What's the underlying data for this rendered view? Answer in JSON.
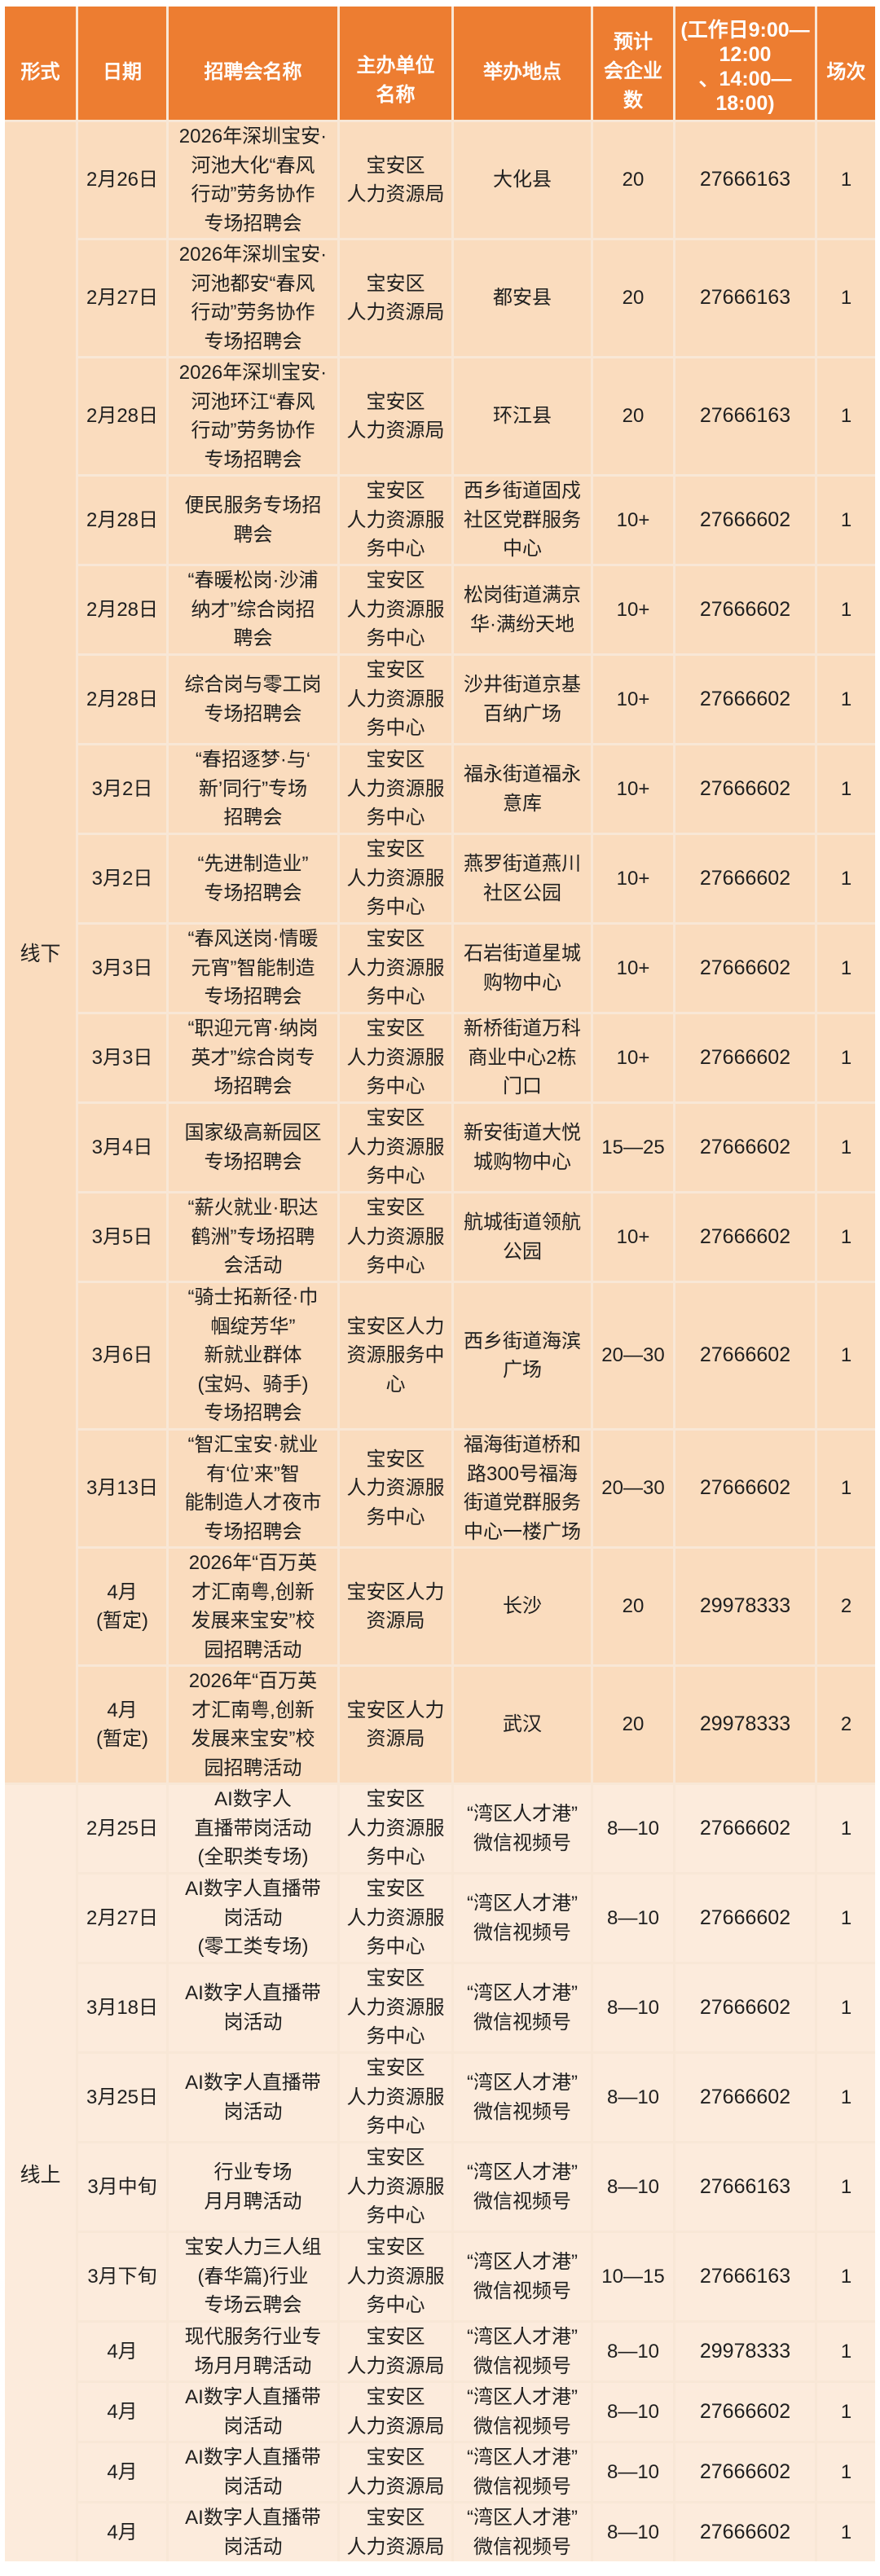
{
  "colors": {
    "header_bg": "#ED7D31",
    "header_text": "#FFFFFF",
    "offline_row_bg": "#FADCBE",
    "online_row_bg": "#FCEBDC",
    "grid_line": "#F8E7D6",
    "body_text": "#1F1F1F"
  },
  "table": {
    "header": {
      "cols": [
        "形式",
        "日期",
        "招聘会名称",
        "主办单位\n名称",
        "举办地点",
        "预计\n会企业\n数",
        "(工作日9:00—12:00\n、14:00—18:00)",
        "场次"
      ]
    },
    "sections": [
      {
        "label": "线下",
        "rows": [
          {
            "date": "2月26日",
            "name": "2026年深圳宝安·\n河池大化“春风\n行动”劳务协作\n专场招聘会",
            "org": "宝安区\n人力资源局",
            "loc": "大化县",
            "companies": "20",
            "phone": "27666163",
            "sessions": "1"
          },
          {
            "date": "2月27日",
            "name": "2026年深圳宝安·\n河池都安“春风\n行动”劳务协作\n专场招聘会",
            "org": "宝安区\n人力资源局",
            "loc": "都安县",
            "companies": "20",
            "phone": "27666163",
            "sessions": "1"
          },
          {
            "date": "2月28日",
            "name": "2026年深圳宝安·\n河池环江“春风\n行动”劳务协作\n专场招聘会",
            "org": "宝安区\n人力资源局",
            "loc": "环江县",
            "companies": "20",
            "phone": "27666163",
            "sessions": "1"
          },
          {
            "date": "2月28日",
            "name": "便民服务专场招\n聘会",
            "org": "宝安区\n人力资源服\n务中心",
            "loc": "西乡街道固戍\n社区党群服务\n中心",
            "companies": "10+",
            "phone": "27666602",
            "sessions": "1"
          },
          {
            "date": "2月28日",
            "name": "“春暖松岗·沙浦\n纳才”综合岗招\n聘会",
            "org": "宝安区\n人力资源服\n务中心",
            "loc": "松岗街道满京\n华·满纷天地",
            "companies": "10+",
            "phone": "27666602",
            "sessions": "1"
          },
          {
            "date": "2月28日",
            "name": "综合岗与零工岗\n专场招聘会",
            "org": "宝安区\n人力资源服\n务中心",
            "loc": "沙井街道京基\n百纳广场",
            "companies": "10+",
            "phone": "27666602",
            "sessions": "1"
          },
          {
            "date": "3月2日",
            "name": "“春招逐梦·与‘\n新’同行”专场\n招聘会",
            "org": "宝安区\n人力资源服\n务中心",
            "loc": "福永街道福永\n意库",
            "companies": "10+",
            "phone": "27666602",
            "sessions": "1"
          },
          {
            "date": "3月2日",
            "name": "“先进制造业”\n专场招聘会",
            "org": "宝安区\n人力资源服\n务中心",
            "loc": "燕罗街道燕川\n社区公园",
            "companies": "10+",
            "phone": "27666602",
            "sessions": "1"
          },
          {
            "date": "3月3日",
            "name": "“春风送岗·情暖\n元宵”智能制造\n专场招聘会",
            "org": "宝安区\n人力资源服\n务中心",
            "loc": "石岩街道星城\n购物中心",
            "companies": "10+",
            "phone": "27666602",
            "sessions": "1"
          },
          {
            "date": "3月3日",
            "name": "“职迎元宵·纳岗\n英才”综合岗专\n场招聘会",
            "org": "宝安区\n人力资源服\n务中心",
            "loc": "新桥街道万科\n商业中心2栋\n门口",
            "companies": "10+",
            "phone": "27666602",
            "sessions": "1"
          },
          {
            "date": "3月4日",
            "name": "国家级高新园区\n专场招聘会",
            "org": "宝安区\n人力资源服\n务中心",
            "loc": "新安街道大悦\n城购物中心",
            "companies": "15—25",
            "phone": "27666602",
            "sessions": "1"
          },
          {
            "date": "3月5日",
            "name": "“薪火就业·职达\n鹤洲”专场招聘\n会活动",
            "org": "宝安区\n人力资源服\n务中心",
            "loc": "航城街道领航\n公园",
            "companies": "10+",
            "phone": "27666602",
            "sessions": "1"
          },
          {
            "date": "3月6日",
            "name": "“骑士拓新径·巾\n帼绽芳华”\n新就业群体\n(宝妈、骑手)\n专场招聘会",
            "org": "宝安区人力\n资源服务中\n心",
            "loc": "西乡街道海滨\n广场",
            "companies": "20—30",
            "phone": "27666602",
            "sessions": "1"
          },
          {
            "date": "3月13日",
            "name": "“智汇宝安·就业\n有‘位’来”智\n能制造人才夜市\n专场招聘会",
            "org": "宝安区\n人力资源服\n务中心",
            "loc": "福海街道桥和\n路300号福海\n街道党群服务\n中心一楼广场",
            "companies": "20—30",
            "phone": "27666602",
            "sessions": "1"
          },
          {
            "date": "4月\n(暂定)",
            "name": "2026年“百万英\n才汇南粤,创新\n发展来宝安”校\n园招聘活动",
            "org": "宝安区人力\n资源局",
            "loc": "长沙",
            "companies": "20",
            "phone": "29978333",
            "sessions": "2"
          },
          {
            "date": "4月\n(暂定)",
            "name": "2026年“百万英\n才汇南粤,创新\n发展来宝安”校\n园招聘活动",
            "org": "宝安区人力\n资源局",
            "loc": "武汉",
            "companies": "20",
            "phone": "29978333",
            "sessions": "2"
          }
        ]
      },
      {
        "label": "线上",
        "rows": [
          {
            "date": "2月25日",
            "name": "AI数字人\n直播带岗活动\n(全职类专场)",
            "org": "宝安区\n人力资源服\n务中心",
            "loc": "“湾区人才港”\n微信视频号",
            "companies": "8—10",
            "phone": "27666602",
            "sessions": "1"
          },
          {
            "date": "2月27日",
            "name": "AI数字人直播带\n岗活动\n(零工类专场)",
            "org": "宝安区\n人力资源服\n务中心",
            "loc": "“湾区人才港”\n微信视频号",
            "companies": "8—10",
            "phone": "27666602",
            "sessions": "1"
          },
          {
            "date": "3月18日",
            "name": "AI数字人直播带\n岗活动",
            "org": "宝安区\n人力资源服\n务中心",
            "loc": "“湾区人才港”\n微信视频号",
            "companies": "8—10",
            "phone": "27666602",
            "sessions": "1"
          },
          {
            "date": "3月25日",
            "name": "AI数字人直播带\n岗活动",
            "org": "宝安区\n人力资源服\n务中心",
            "loc": "“湾区人才港”\n微信视频号",
            "companies": "8—10",
            "phone": "27666602",
            "sessions": "1"
          },
          {
            "date": "3月中旬",
            "name": "行业专场\n月月聘活动",
            "org": "宝安区\n人力资源服\n务中心",
            "loc": "“湾区人才港”\n微信视频号",
            "companies": "8—10",
            "phone": "27666163",
            "sessions": "1"
          },
          {
            "date": "3月下旬",
            "name": "宝安人力三人组\n(春华篇)行业\n专场云聘会",
            "org": "宝安区\n人力资源服\n务中心",
            "loc": "“湾区人才港”\n微信视频号",
            "companies": "10—15",
            "phone": "27666163",
            "sessions": "1"
          },
          {
            "date": "4月",
            "name": "现代服务行业专\n场月月聘活动",
            "org": "宝安区\n人力资源局",
            "loc": "“湾区人才港”\n微信视频号",
            "companies": "8—10",
            "phone": "29978333",
            "sessions": "1"
          },
          {
            "date": "4月",
            "name": "AI数字人直播带\n岗活动",
            "org": "宝安区\n人力资源局",
            "loc": "“湾区人才港”\n微信视频号",
            "companies": "8—10",
            "phone": "27666602",
            "sessions": "1"
          },
          {
            "date": "4月",
            "name": "AI数字人直播带\n岗活动",
            "org": "宝安区\n人力资源局",
            "loc": "“湾区人才港”\n微信视频号",
            "companies": "8—10",
            "phone": "27666602",
            "sessions": "1"
          },
          {
            "date": "4月",
            "name": "AI数字人直播带\n岗活动",
            "org": "宝安区\n人力资源局",
            "loc": "“湾区人才港”\n微信视频号",
            "companies": "8—10",
            "phone": "27666602",
            "sessions": "1"
          }
        ]
      }
    ]
  }
}
